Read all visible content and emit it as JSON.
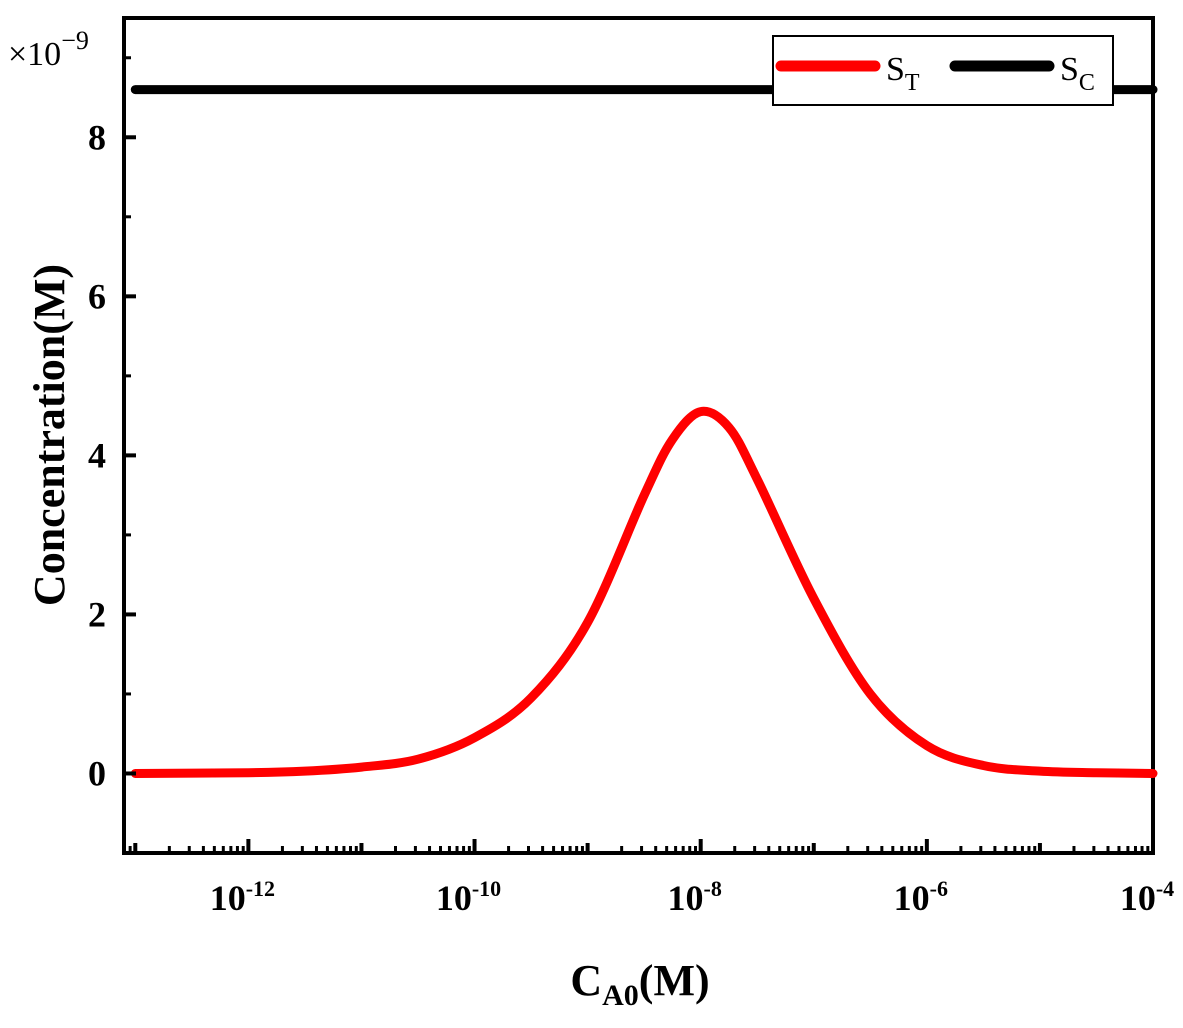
{
  "chart_data": {
    "type": "line",
    "xscale": "log",
    "xlim_exp": [
      -13.1,
      -4
    ],
    "ylim": [
      -1e-09,
      9.5e-09
    ],
    "y_multiplier": "×10",
    "y_multiplier_exp": "−9",
    "ylabel": "Concentration(M)",
    "xlabel_main": "C",
    "xlabel_sub": "A0",
    "xlabel_unit": "(M)",
    "x_major_ticks": [
      {
        "base": "10",
        "exp": "-12",
        "value": -12
      },
      {
        "base": "10",
        "exp": "-10",
        "value": -10
      },
      {
        "base": "10",
        "exp": "-8",
        "value": -8
      },
      {
        "base": "10",
        "exp": "-6",
        "value": -6
      },
      {
        "base": "10",
        "exp": "-4",
        "value": -4
      }
    ],
    "y_major_ticks": [
      {
        "label": "0",
        "value": 0
      },
      {
        "label": "2",
        "value": 2e-09
      },
      {
        "label": "4",
        "value": 4e-09
      },
      {
        "label": "6",
        "value": 6e-09
      },
      {
        "label": "8",
        "value": 8e-09
      }
    ],
    "series": [
      {
        "name": "S",
        "sub": "T",
        "color": "#ff0000",
        "x_log10": [
          -13,
          -12,
          -11.5,
          -11,
          -10.5,
          -10,
          -9.5,
          -9,
          -8.5,
          -8.25,
          -8,
          -7.75,
          -7.5,
          -7,
          -6.5,
          -6,
          -5.5,
          -5,
          -4.5,
          -4
        ],
        "y": [
          0.0,
          1e-11,
          3e-11,
          8e-11,
          1.8e-10,
          4.5e-10,
          9.5e-10,
          1.9e-09,
          3.5e-09,
          4.2e-09,
          4.55e-09,
          4.35e-09,
          3.7e-09,
          2.2e-09,
          1e-09,
          3.5e-10,
          1e-10,
          3e-11,
          1e-11,
          0.0
        ]
      },
      {
        "name": "S",
        "sub": "C",
        "color": "#000000",
        "x_log10": [
          -13,
          -4
        ],
        "y": [
          8.6e-09,
          8.6e-09
        ]
      }
    ],
    "legend_position": "top-right"
  }
}
